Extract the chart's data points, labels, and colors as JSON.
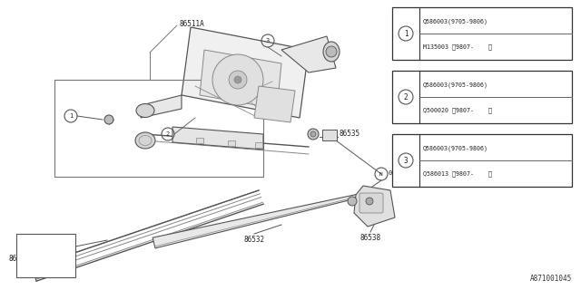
{
  "bg_color": "#f0f0f0",
  "line_color": "#888888",
  "dark_line": "#555555",
  "text_color": "#222222",
  "footer": "A871001045",
  "legend": [
    {
      "num": "1",
      "l1": "Q586003(9705-9806)",
      "l2": "M135003 〈9807-    〉"
    },
    {
      "num": "2",
      "l1": "Q586003(9705-9806)",
      "l2": "Q500020 〈9807-    〉"
    },
    {
      "num": "3",
      "l1": "Q586003(9705-9806)",
      "l2": "Q586013 〈9807-    〉"
    }
  ]
}
